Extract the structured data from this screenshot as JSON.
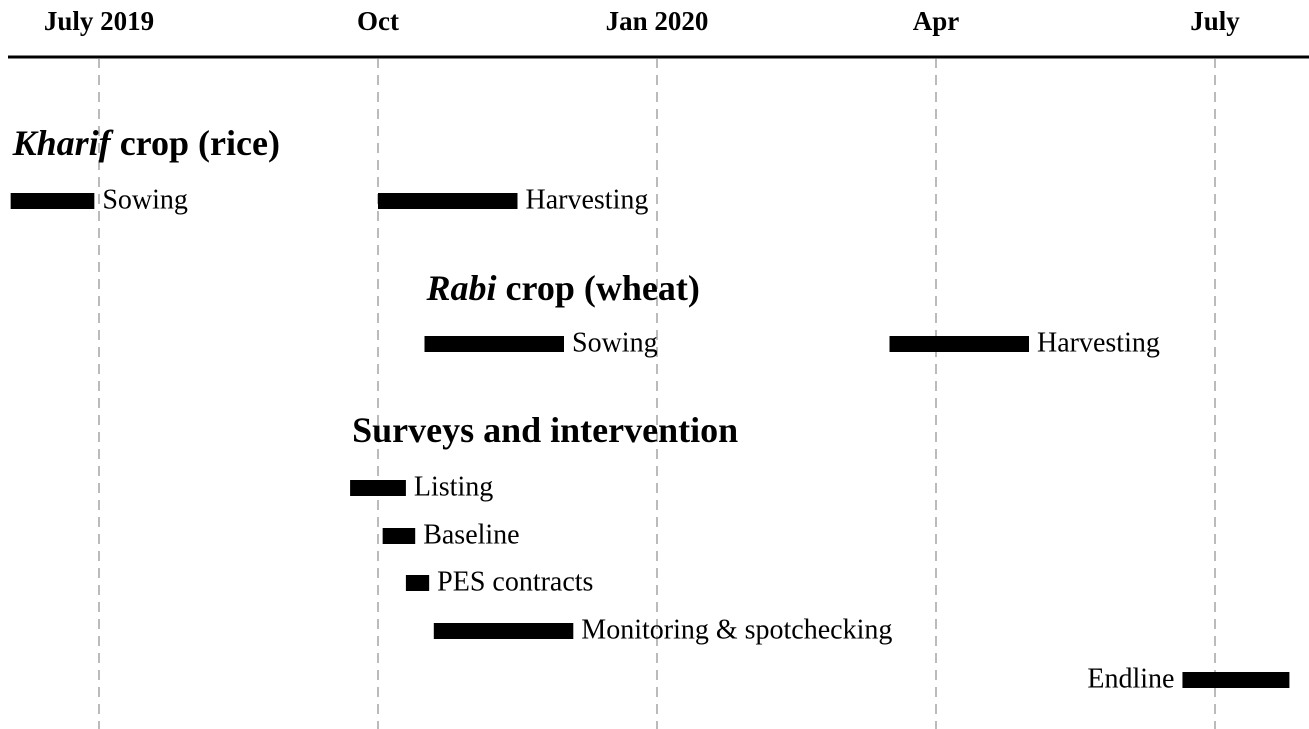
{
  "chart_data": {
    "type": "gantt",
    "xlim": [
      -1,
      13
    ],
    "xticks": [
      {
        "value": 0,
        "label": "July 2019"
      },
      {
        "value": 3,
        "label": "Oct"
      },
      {
        "value": 6,
        "label": "Jan 2020"
      },
      {
        "value": 9,
        "label": "Apr"
      },
      {
        "value": 12,
        "label": "July"
      }
    ],
    "grid": true,
    "color": "#000000",
    "groups": [
      {
        "label_italic": "Kharif",
        "label": "crop (rice)",
        "tasks": [
          {
            "name": "Sowing",
            "start": -0.95,
            "end": -0.05
          },
          {
            "name": "Harvesting",
            "start": 3.0,
            "end": 4.5
          }
        ]
      },
      {
        "label_italic": "Rabi",
        "label": "crop (wheat)",
        "tasks": [
          {
            "name": "Sowing",
            "start": 3.5,
            "end": 5.0
          },
          {
            "name": "Harvesting",
            "start": 8.5,
            "end": 10.0
          }
        ]
      },
      {
        "label": "Surveys and intervention",
        "tasks": [
          {
            "name": "Listing",
            "start": 2.7,
            "end": 3.3
          },
          {
            "name": "Baseline",
            "start": 3.05,
            "end": 3.4
          },
          {
            "name": "PES contracts",
            "start": 3.3,
            "end": 3.55
          },
          {
            "name": "Monitoring & spotchecking",
            "start": 3.6,
            "end": 5.1
          },
          {
            "name": "Endline",
            "start": 11.65,
            "end": 12.8,
            "label_side": "left"
          }
        ]
      }
    ]
  }
}
